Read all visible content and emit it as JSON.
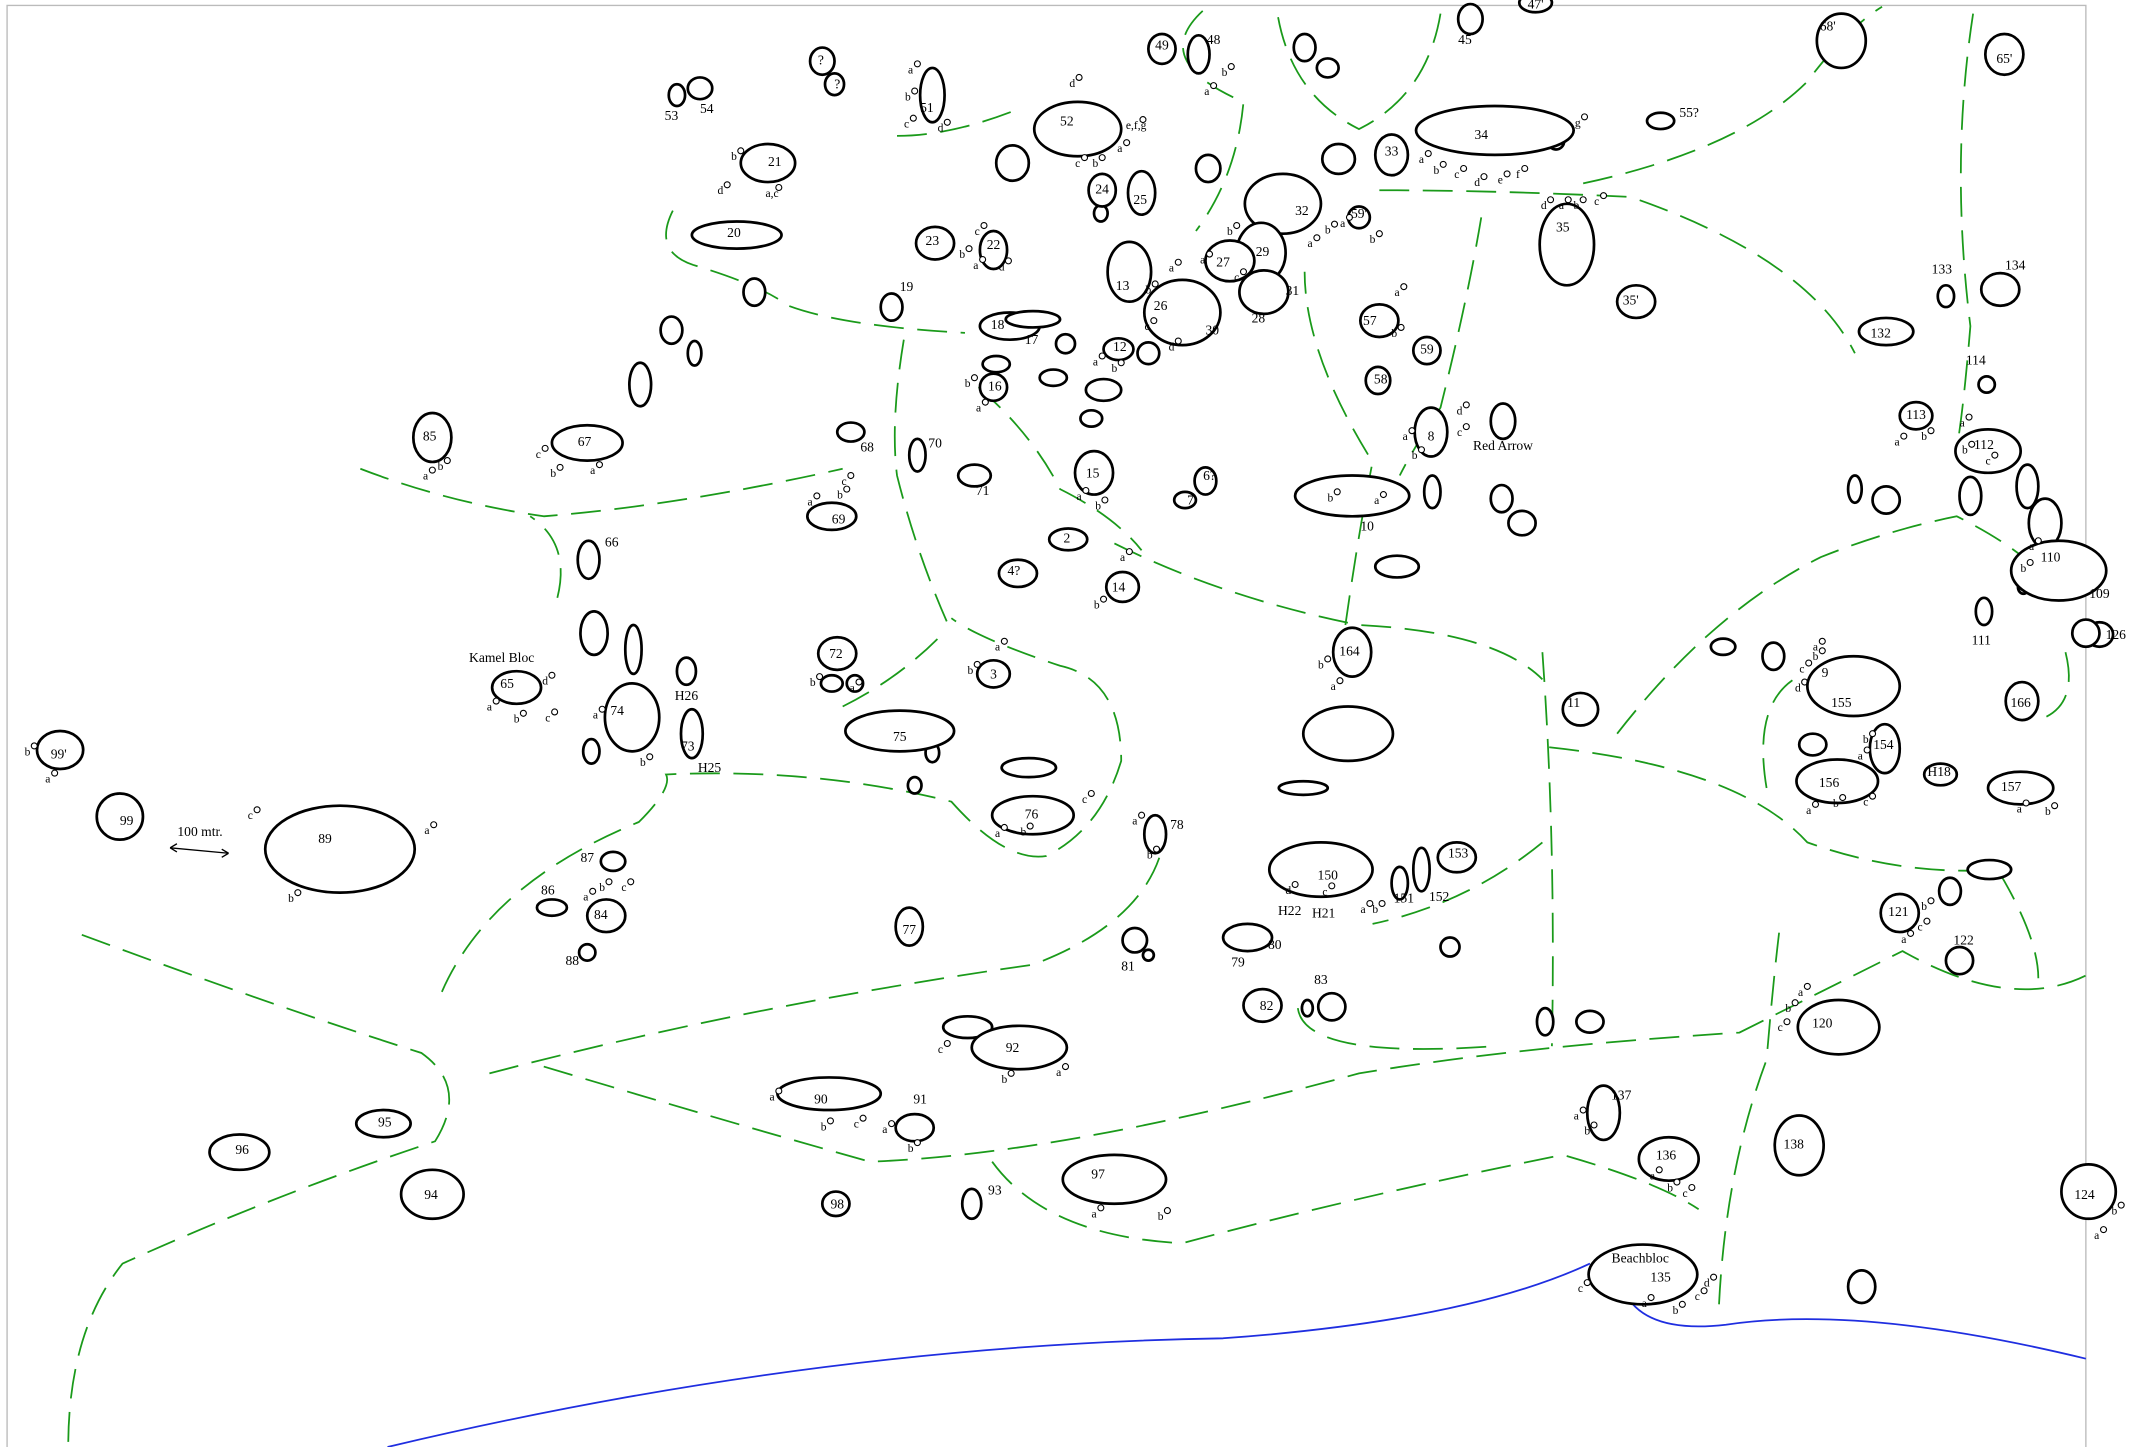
{
  "boulders": [
    {
      "label": "53"
    },
    {
      "label": "54"
    },
    {
      "label": "?"
    },
    {
      "label": "?"
    },
    {
      "label": "51",
      "problems": [
        "a",
        "b",
        "c",
        "d"
      ]
    },
    {
      "label": "49"
    },
    {
      "label": "48",
      "problems": [
        "b",
        "a"
      ]
    },
    {
      "label": "47'"
    },
    {
      "label": "45"
    },
    {
      "label": "68'"
    },
    {
      "label": "65'"
    },
    {
      "label": "52",
      "problems": [
        "d",
        "e,f,g",
        "a",
        "b",
        "c"
      ]
    },
    {
      "label": "21",
      "problems": [
        "b",
        "d",
        "a,c"
      ]
    },
    {
      "label": "20"
    },
    {
      "label": "34",
      "problems": [
        "a",
        "b",
        "c",
        "d",
        "e",
        "f",
        "g"
      ]
    },
    {
      "label": "33"
    },
    {
      "label": "55?"
    },
    {
      "label": "35",
      "problems": [
        "d",
        "a",
        "b",
        "c"
      ]
    },
    {
      "label": "35'"
    },
    {
      "label": "32",
      "problems": [
        "b",
        "a"
      ]
    },
    {
      "label": "59'",
      "problems": [
        "a",
        "b"
      ]
    },
    {
      "label": "24"
    },
    {
      "label": "25"
    },
    {
      "label": "23"
    },
    {
      "label": "22",
      "problems": [
        "c",
        "b",
        "a",
        "d"
      ]
    },
    {
      "label": "29"
    },
    {
      "label": "27",
      "problems": [
        "b",
        "a",
        "c"
      ]
    },
    {
      "label": "13"
    },
    {
      "label": "26",
      "problems": [
        "a",
        "b",
        "c",
        "d"
      ]
    },
    {
      "label": "30"
    },
    {
      "label": "28"
    },
    {
      "label": "31"
    },
    {
      "label": "19"
    },
    {
      "label": "18"
    },
    {
      "label": "17"
    },
    {
      "label": "12",
      "problems": [
        "a",
        "b"
      ]
    },
    {
      "label": "16",
      "problems": [
        "b",
        "a"
      ]
    },
    {
      "label": "57",
      "problems": [
        "a",
        "b"
      ]
    },
    {
      "label": "58"
    },
    {
      "label": "59"
    },
    {
      "label": "85",
      "problems": [
        "a",
        "b"
      ]
    },
    {
      "label": "67",
      "problems": [
        "c",
        "b",
        "a"
      ]
    },
    {
      "label": "68"
    },
    {
      "label": "70"
    },
    {
      "label": "8",
      "problems": [
        "d",
        "a",
        "c",
        "b"
      ]
    },
    {
      "label": "Red Arrow"
    },
    {
      "label": "113",
      "problems": [
        "a",
        "b"
      ]
    },
    {
      "label": "112",
      "problems": [
        "a",
        "b",
        "c"
      ]
    },
    {
      "label": "114"
    },
    {
      "label": "133"
    },
    {
      "label": "134"
    },
    {
      "label": "132"
    },
    {
      "label": "69",
      "problems": [
        "a",
        "b",
        "c"
      ]
    },
    {
      "label": "71"
    },
    {
      "label": "15",
      "problems": [
        "a",
        "b"
      ]
    },
    {
      "label": "6?"
    },
    {
      "label": "7"
    },
    {
      "label": "10",
      "problems": [
        "b",
        "a"
      ]
    },
    {
      "label": "2"
    },
    {
      "label": "4?"
    },
    {
      "label": "14",
      "problems": [
        "a",
        "b"
      ]
    },
    {
      "label": "66"
    },
    {
      "label": "110",
      "problems": [
        "a",
        "b"
      ]
    },
    {
      "label": "109"
    },
    {
      "label": "111"
    },
    {
      "label": "126"
    },
    {
      "label": "164",
      "problems": [
        "b",
        "a"
      ]
    },
    {
      "label": "72",
      "problems": [
        "b",
        "a"
      ]
    },
    {
      "label": "3",
      "problems": [
        "a",
        "b"
      ]
    },
    {
      "label": "9",
      "problems": [
        "a",
        "b",
        "c",
        "d"
      ]
    },
    {
      "label": "155"
    },
    {
      "label": "154",
      "problems": [
        "a",
        "b"
      ]
    },
    {
      "label": "11"
    },
    {
      "label": "166"
    },
    {
      "label": "65",
      "name": "Kamel Bloc",
      "problems": [
        "a",
        "b",
        "c",
        "d"
      ]
    },
    {
      "label": "74",
      "problems": [
        "a",
        "b"
      ]
    },
    {
      "label": "H26"
    },
    {
      "label": "73"
    },
    {
      "label": "99'",
      "problems": [
        "b",
        "a"
      ]
    },
    {
      "label": "99"
    },
    {
      "label": "89",
      "problems": [
        "c",
        "a",
        "b"
      ]
    },
    {
      "label": "75"
    },
    {
      "label": "76",
      "problems": [
        "a",
        "b",
        "c"
      ]
    },
    {
      "label": "78",
      "problems": [
        "a",
        "b"
      ]
    },
    {
      "label": "156",
      "problems": [
        "a",
        "b",
        "c"
      ]
    },
    {
      "label": "H18"
    },
    {
      "label": "157",
      "problems": [
        "a",
        "b"
      ]
    },
    {
      "label": "150",
      "problems": [
        "d",
        "c",
        "a",
        "b"
      ]
    },
    {
      "label": "151"
    },
    {
      "label": "152"
    },
    {
      "label": "153"
    },
    {
      "label": "87"
    },
    {
      "label": "86"
    },
    {
      "label": "84",
      "problems": [
        "a",
        "b",
        "c"
      ]
    },
    {
      "label": "88"
    },
    {
      "label": "77"
    },
    {
      "label": "81"
    },
    {
      "label": "79"
    },
    {
      "label": "80"
    },
    {
      "label": "121",
      "problems": [
        "b",
        "c",
        "a"
      ]
    },
    {
      "label": "122"
    },
    {
      "label": "82"
    },
    {
      "label": "83"
    },
    {
      "label": "120",
      "problems": [
        "a",
        "b",
        "c"
      ]
    },
    {
      "label": "92",
      "problems": [
        "c",
        "b",
        "a"
      ]
    },
    {
      "label": "90",
      "problems": [
        "a",
        "b",
        "c"
      ]
    },
    {
      "label": "91",
      "problems": [
        "a",
        "b"
      ]
    },
    {
      "label": "95"
    },
    {
      "label": "96"
    },
    {
      "label": "94"
    },
    {
      "label": "97",
      "problems": [
        "a",
        "b"
      ]
    },
    {
      "label": "98"
    },
    {
      "label": "93"
    },
    {
      "label": "137",
      "problems": [
        "a",
        "b"
      ]
    },
    {
      "label": "136",
      "problems": [
        "a",
        "b",
        "c"
      ]
    },
    {
      "label": "138"
    },
    {
      "label": "124",
      "problems": [
        "b",
        "a"
      ]
    },
    {
      "label": "135",
      "name": "Beachbloc",
      "problems": [
        "c",
        "a",
        "b",
        "c",
        "d"
      ]
    }
  ],
  "extra_labels": [
    "H22",
    "H21",
    "H25"
  ],
  "scale_label": "100 mtr."
}
